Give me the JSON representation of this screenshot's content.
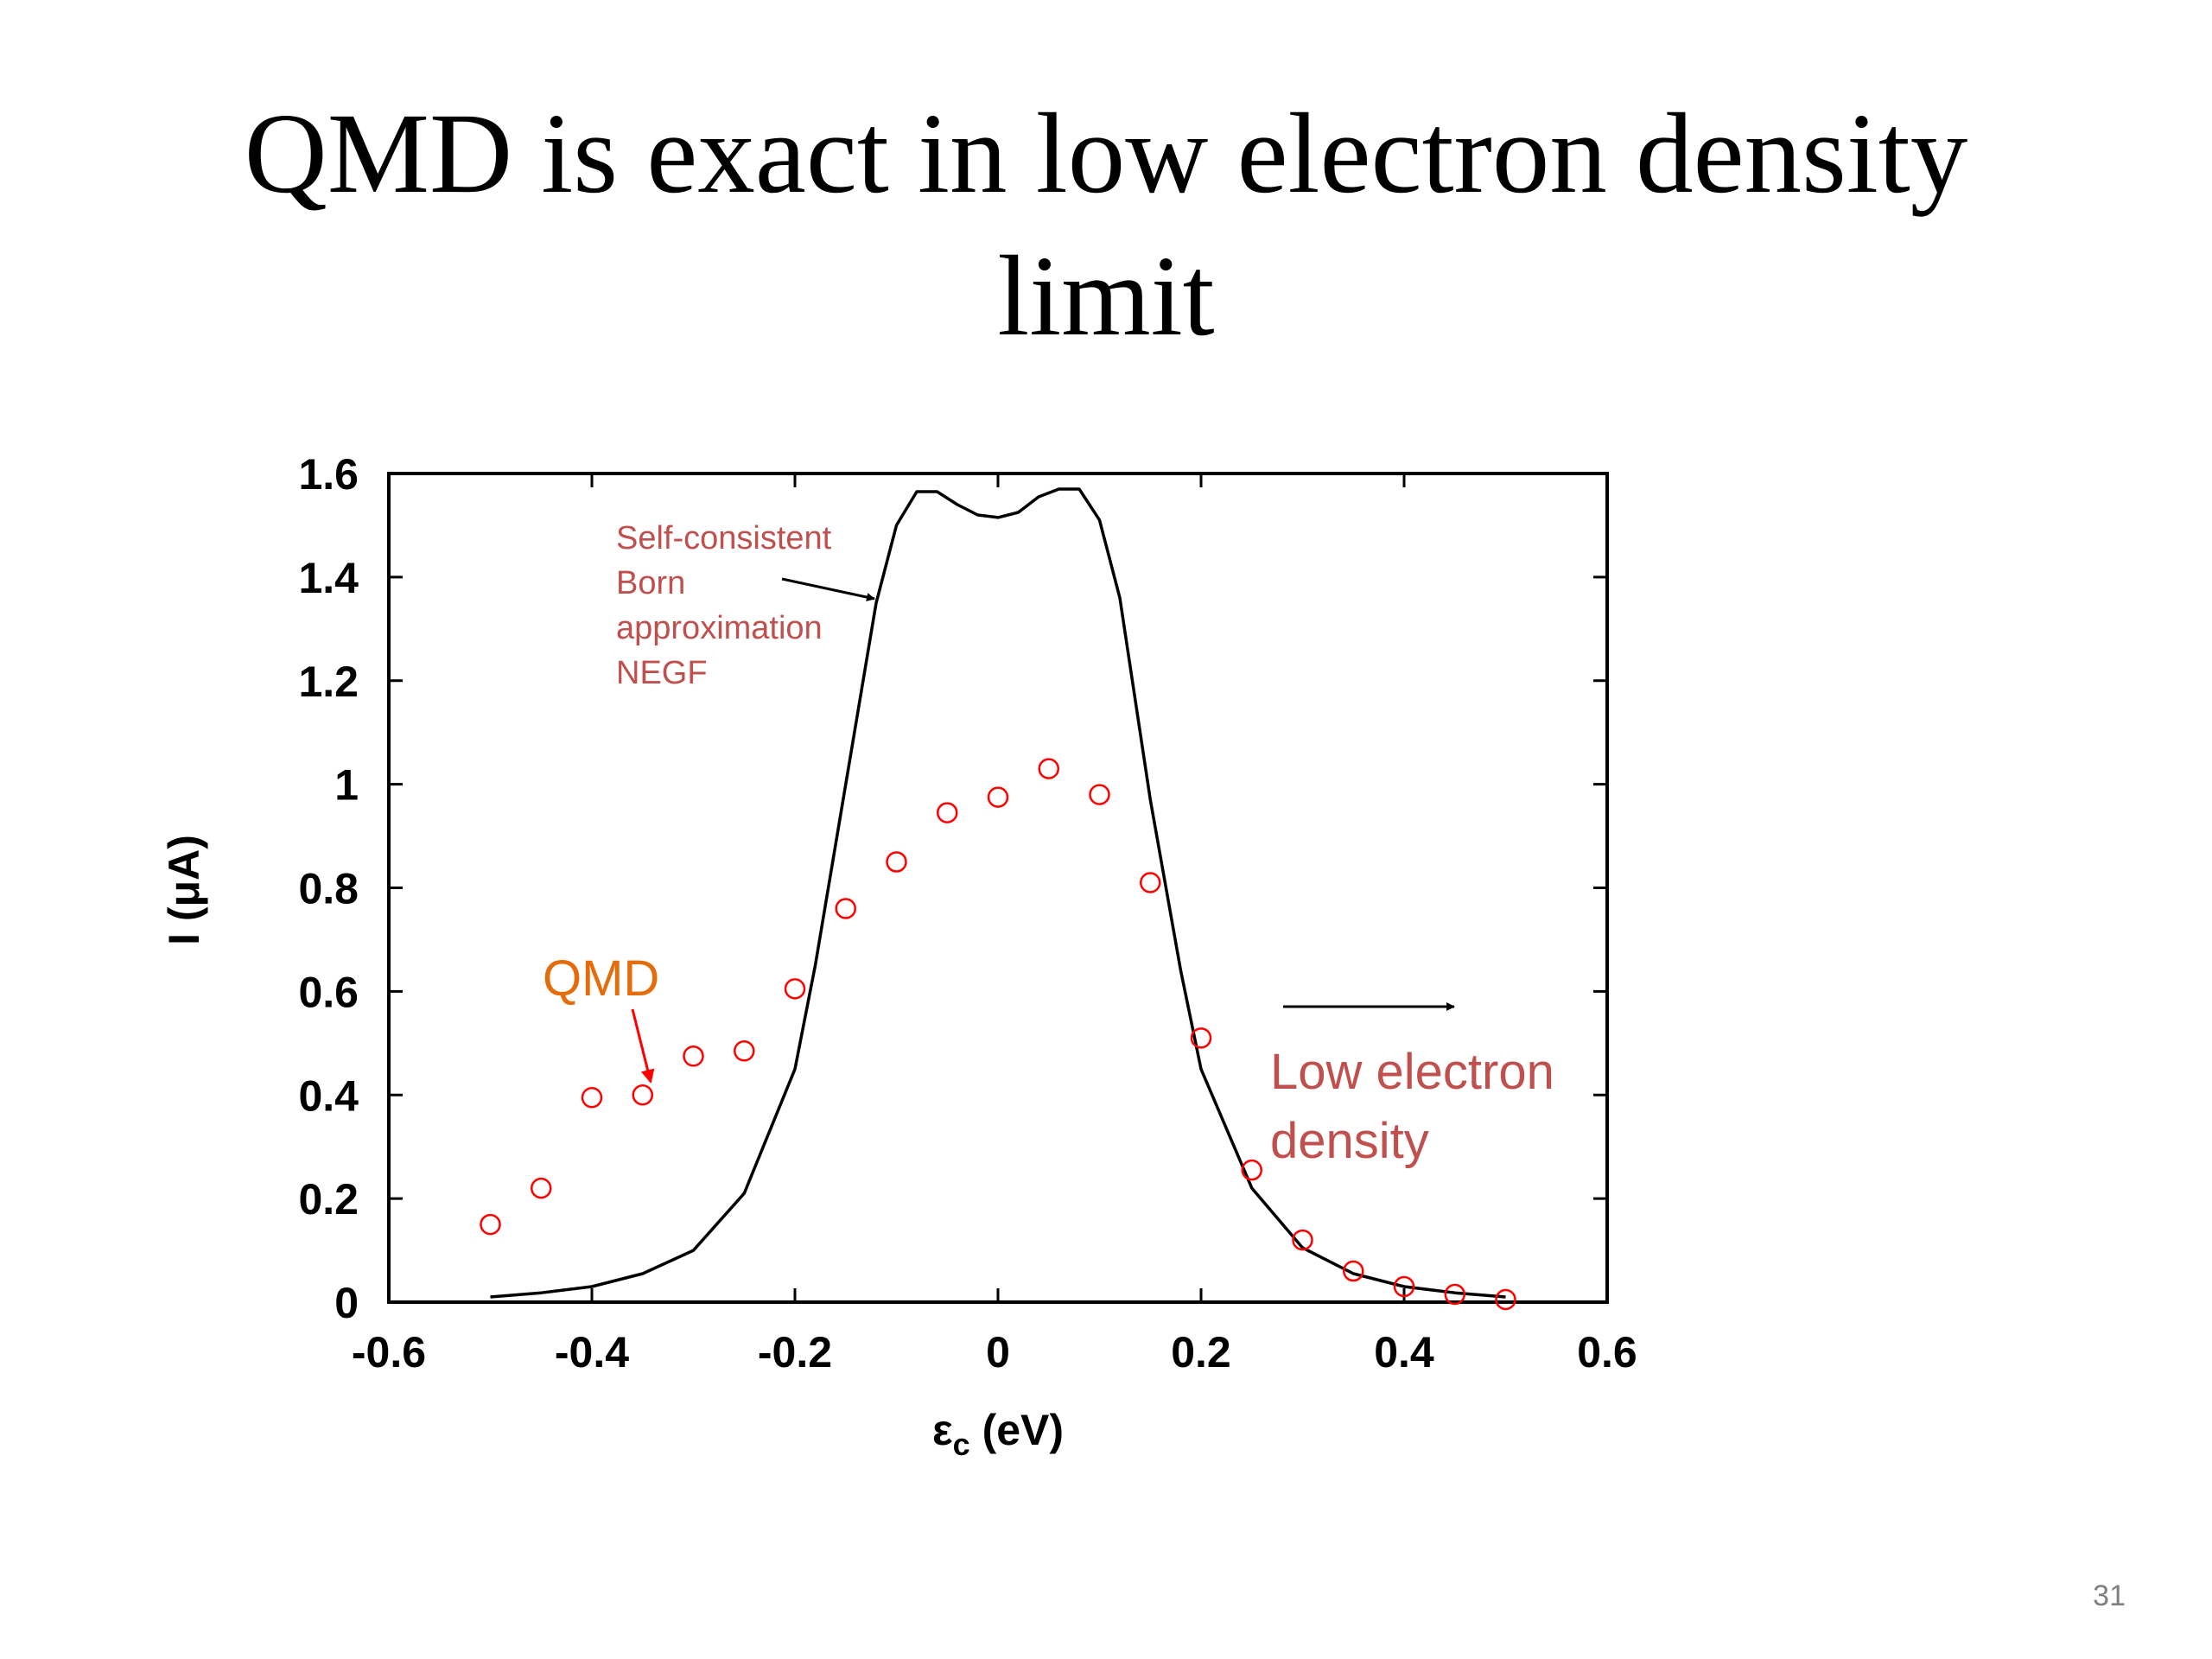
{
  "slide": {
    "title_line1": "QMD is exact in low electron density",
    "title_line2": "limit",
    "page_number": "31"
  },
  "chart_data": {
    "type": "line",
    "xlabel": "εc (eV)",
    "xlabel_main": "ε",
    "xlabel_sub": "c",
    "xlabel_unit": " (eV)",
    "ylabel": "I (μA)",
    "xlim": [
      -0.6,
      0.6
    ],
    "ylim": [
      0,
      1.6
    ],
    "x_ticks": [
      -0.6,
      -0.4,
      -0.2,
      0,
      0.2,
      0.4,
      0.6
    ],
    "x_tick_labels": [
      "-0.6",
      "-0.4",
      "-0.2",
      "0",
      "0.2",
      "0.4",
      "0.6"
    ],
    "y_ticks": [
      0,
      0.2,
      0.4,
      0.6,
      0.8,
      1.0,
      1.2,
      1.4,
      1.6
    ],
    "y_tick_labels": [
      "0",
      "0.2",
      "0.4",
      "0.6",
      "0.8",
      "1",
      "1.2",
      "1.4",
      "1.6"
    ],
    "grid": false,
    "series": [
      {
        "style": "line",
        "color": "#000000",
        "x": [
          -0.5,
          -0.45,
          -0.4,
          -0.35,
          -0.3,
          -0.25,
          -0.2,
          -0.18,
          -0.15,
          -0.12,
          -0.1,
          -0.08,
          -0.06,
          -0.04,
          -0.02,
          0,
          0.02,
          0.04,
          0.06,
          0.08,
          0.1,
          0.12,
          0.15,
          0.18,
          0.2,
          0.25,
          0.3,
          0.35,
          0.4,
          0.45,
          0.5
        ],
        "y": [
          0.01,
          0.018,
          0.03,
          0.055,
          0.1,
          0.21,
          0.45,
          0.65,
          1.0,
          1.35,
          1.5,
          1.565,
          1.565,
          1.54,
          1.52,
          1.515,
          1.525,
          1.555,
          1.57,
          1.57,
          1.51,
          1.36,
          0.97,
          0.64,
          0.45,
          0.22,
          0.105,
          0.055,
          0.03,
          0.018,
          0.01
        ]
      },
      {
        "style": "markers",
        "color": "#ff0000",
        "x": [
          -0.5,
          -0.45,
          -0.4,
          -0.35,
          -0.3,
          -0.25,
          -0.2,
          -0.15,
          -0.1,
          -0.05,
          0,
          0.05,
          0.1,
          0.15,
          0.2,
          0.25,
          0.3,
          0.35,
          0.4,
          0.45,
          0.5
        ],
        "y": [
          0.15,
          0.22,
          0.395,
          0.4,
          0.475,
          0.485,
          0.605,
          0.76,
          0.85,
          0.945,
          0.975,
          1.03,
          0.98,
          0.81,
          0.51,
          0.255,
          0.12,
          0.06,
          0.03,
          0.015,
          0.005
        ]
      }
    ],
    "annotations": {
      "negf": {
        "lines": [
          "Self-consistent",
          "Born",
          "approximation",
          "NEGF"
        ],
        "color": "#c0504d"
      },
      "qmd": {
        "text": "QMD",
        "color": "#e46c0a",
        "arrow_color": "#ff0000"
      },
      "low_density": {
        "lines": [
          "Low electron",
          "density"
        ],
        "color": "#c0504d"
      }
    }
  }
}
